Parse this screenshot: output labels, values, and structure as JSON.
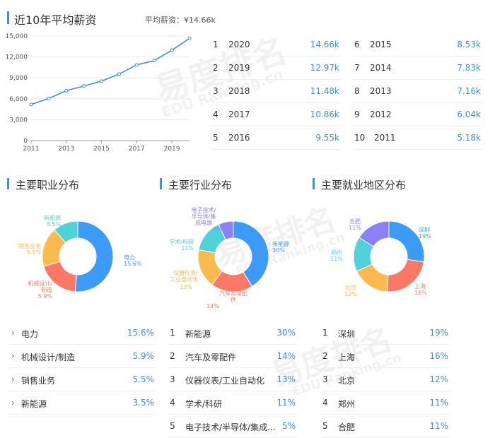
{
  "salary": {
    "title": "近10年平均薪资",
    "avg_label": "平均薪资：¥14.66k",
    "rows": [
      {
        "rank": "1",
        "year": "2020",
        "value": "14.66k"
      },
      {
        "rank": "2",
        "year": "2019",
        "value": "12.97k"
      },
      {
        "rank": "3",
        "year": "2018",
        "value": "11.48k"
      },
      {
        "rank": "4",
        "year": "2017",
        "value": "10.86k"
      },
      {
        "rank": "5",
        "year": "2016",
        "value": "9.55k"
      },
      {
        "rank": "6",
        "year": "2015",
        "value": "8.53k"
      },
      {
        "rank": "7",
        "year": "2014",
        "value": "7.83k"
      },
      {
        "rank": "8",
        "year": "2013",
        "value": "7.16k"
      },
      {
        "rank": "9",
        "year": "2012",
        "value": "6.04k"
      },
      {
        "rank": "10",
        "year": "2011",
        "value": "5.18k"
      }
    ]
  },
  "chart_data": [
    {
      "type": "line",
      "title": "近10年平均薪资",
      "x": [
        2011,
        2012,
        2013,
        2014,
        2015,
        2016,
        2017,
        2018,
        2019,
        2020
      ],
      "x_ticks": [
        "2011",
        "2013",
        "2015",
        "2017",
        "2019"
      ],
      "y_ticks": [
        "0",
        "3,000",
        "6,000",
        "9,000",
        "12,000",
        "15,000"
      ],
      "ylim": [
        0,
        15000
      ],
      "series": [
        {
          "values": [
            5180,
            6040,
            7160,
            7830,
            8530,
            9550,
            10860,
            11480,
            12970,
            14660
          ]
        }
      ],
      "color": "#3d8fe6"
    },
    {
      "type": "pie",
      "title": "主要职业分布",
      "slices": [
        {
          "label": "电力",
          "pct_label": "15.6%",
          "value": 15.6,
          "color": "#3d9bf8"
        },
        {
          "label": "机械设计/制造",
          "pct_label": "5.9%",
          "value": 5.9,
          "color": "#fc7866"
        },
        {
          "label": "销售业务",
          "pct_label": "5.5%",
          "value": 5.5,
          "color": "#fdba4c"
        },
        {
          "label": "新能源",
          "pct_label": "3.5%",
          "value": 3.5,
          "color": "#4fd3d8"
        }
      ]
    },
    {
      "type": "pie",
      "title": "主要行业分布",
      "slices": [
        {
          "label": "新能源",
          "pct_label": "30%",
          "value": 30,
          "color": "#3d9bf8"
        },
        {
          "label": "汽车及零配件",
          "pct_label": "14%",
          "value": 14,
          "color": "#fc7866"
        },
        {
          "label": "仪器仪表/工业自动化",
          "pct_label": "13%",
          "value": 13,
          "color": "#fdba4c"
        },
        {
          "label": "学术/科研",
          "pct_label": "11%",
          "value": 11,
          "color": "#4fd3d8"
        },
        {
          "label": "电子技术/半导体/集成电路",
          "pct_label": "5%",
          "value": 5,
          "color": "#8a80f7"
        }
      ]
    },
    {
      "type": "pie",
      "title": "主要就业地区分布",
      "slices": [
        {
          "label": "深圳",
          "pct_label": "19%",
          "value": 19,
          "color": "#3d9bf8"
        },
        {
          "label": "上海",
          "pct_label": "16%",
          "value": 16,
          "color": "#fc7866"
        },
        {
          "label": "北京",
          "pct_label": "12%",
          "value": 12,
          "color": "#fdba4c"
        },
        {
          "label": "郑州",
          "pct_label": "11%",
          "value": 11,
          "color": "#4fd3d8"
        },
        {
          "label": "合肥",
          "pct_label": "11%",
          "value": 11,
          "color": "#8a80f7"
        }
      ]
    }
  ],
  "sections": {
    "occupation": {
      "title": "主要职业分布",
      "labels": {
        "s0": "电力",
        "s0p": "15.6%",
        "s1a": "机械设计/",
        "s1b": "制造",
        "s1p": "5.9%",
        "s2": "销售业务",
        "s2p": "5.5%",
        "s3": "新能源",
        "s3p": "3.5%"
      },
      "rows": [
        {
          "name": "电力",
          "value": "15.6%"
        },
        {
          "name": "机械设计/制造",
          "value": "5.9%"
        },
        {
          "name": "销售业务",
          "value": "5.5%"
        },
        {
          "name": "新能源",
          "value": "3.5%"
        }
      ]
    },
    "industry": {
      "title": "主要行业分布",
      "labels": {
        "s0": "新能源",
        "s0p": "30%",
        "s1a": "汽车及零配",
        "s1b": "件",
        "s1p": "14%",
        "s2a": "仪器仪表/",
        "s2b": "工业自动化",
        "s2p": "13%",
        "s3": "学术/科研",
        "s3p": "11%",
        "s4a": "电子技术/",
        "s4b": "半导体/集",
        "s4c": "成电路",
        "s4p": "5%"
      },
      "rows": [
        {
          "rank": "1",
          "name": "新能源",
          "value": "30%"
        },
        {
          "rank": "2",
          "name": "汽车及零配件",
          "value": "14%"
        },
        {
          "rank": "3",
          "name": "仪器仪表/工业自动化",
          "value": "13%"
        },
        {
          "rank": "4",
          "name": "学术/科研",
          "value": "11%"
        },
        {
          "rank": "5",
          "name": "电子技术/半导体/集成...",
          "value": "5%"
        }
      ]
    },
    "region": {
      "title": "主要就业地区分布",
      "labels": {
        "s0": "深圳",
        "s0p": "19%",
        "s1": "上海",
        "s1p": "16%",
        "s2": "北京",
        "s2p": "12%",
        "s3": "郑州",
        "s3p": "11%",
        "s4": "合肥",
        "s4p": "11%"
      },
      "rows": [
        {
          "rank": "1",
          "name": "深圳",
          "value": "19%"
        },
        {
          "rank": "2",
          "name": "上海",
          "value": "16%"
        },
        {
          "rank": "3",
          "name": "北京",
          "value": "12%"
        },
        {
          "rank": "4",
          "name": "郑州",
          "value": "11%"
        },
        {
          "rank": "5",
          "name": "合肥",
          "value": "11%"
        }
      ]
    }
  },
  "watermark": {
    "brand": "易度排名",
    "sub": "EDU Ranking.cn"
  }
}
